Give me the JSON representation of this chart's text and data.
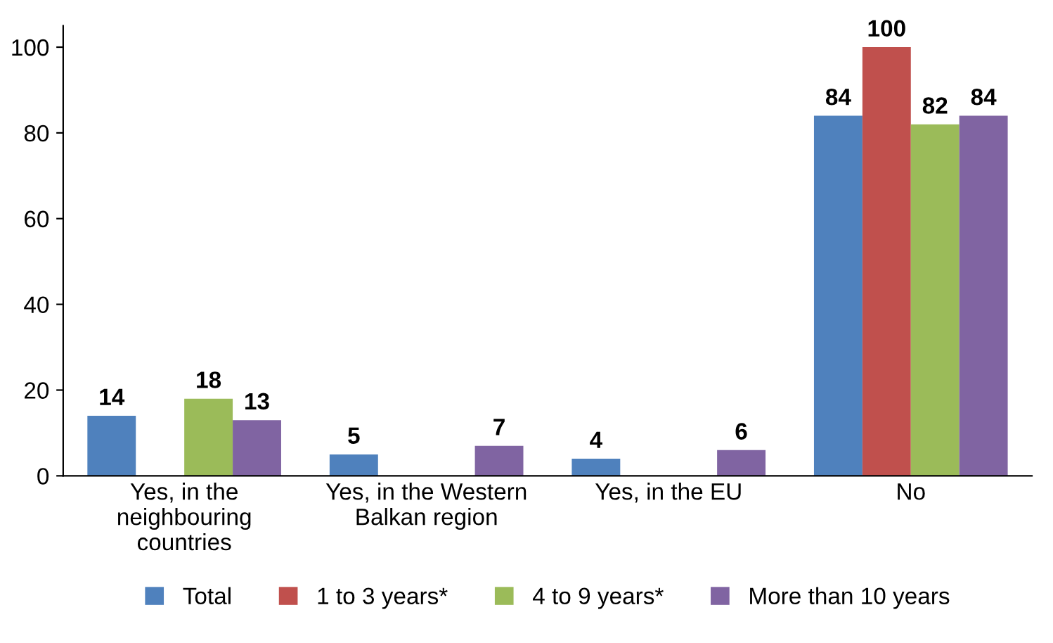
{
  "chart_data": {
    "type": "bar",
    "categories": [
      "Yes, in the\nneighbouring\ncountries",
      "Yes, in the Western\nBalkan region",
      "Yes, in the EU",
      "No"
    ],
    "series": [
      {
        "name": "Total",
        "color": "#4f81bd",
        "values": [
          14,
          5,
          4,
          84
        ],
        "value_labels": [
          "14",
          "5",
          "4",
          "84"
        ]
      },
      {
        "name": "1 to 3 years*",
        "color": "#c0504d",
        "values": [
          0,
          0,
          0,
          100
        ],
        "value_labels": [
          null,
          null,
          null,
          "100"
        ]
      },
      {
        "name": "4 to 9 years*",
        "color": "#9bbb59",
        "values": [
          18,
          0,
          0,
          82
        ],
        "value_labels": [
          "18",
          null,
          null,
          "82"
        ]
      },
      {
        "name": "More than 10 years",
        "color": "#8064a2",
        "values": [
          13,
          7,
          6,
          84
        ],
        "value_labels": [
          "13",
          "7",
          "6",
          "84"
        ]
      }
    ],
    "ylim": [
      0,
      105
    ],
    "yticks": [
      0,
      20,
      40,
      60,
      80,
      100
    ],
    "grid": false,
    "legend": "bottom"
  }
}
